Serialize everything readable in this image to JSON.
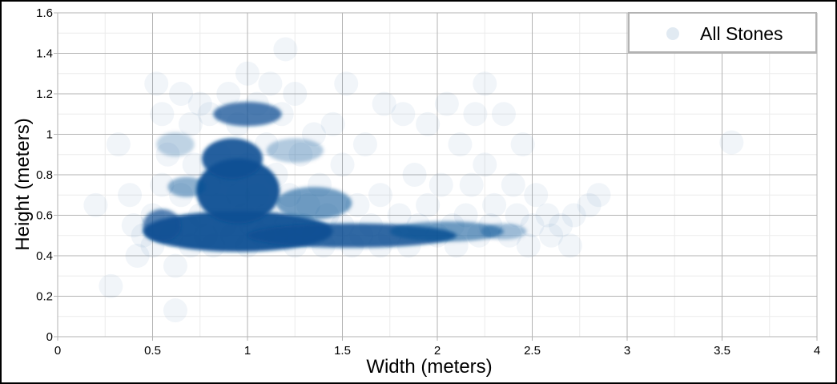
{
  "chart_data": {
    "type": "scatter",
    "title": "",
    "xlabel": "Width (meters)",
    "ylabel": "Height (meters)",
    "xlim": [
      0,
      4
    ],
    "ylim": [
      0,
      1.6
    ],
    "xticks": [
      0,
      0.5,
      1,
      1.5,
      2,
      2.5,
      3,
      3.5,
      4
    ],
    "xtick_labels": [
      "0",
      "0.5",
      "1",
      "1.5",
      "2",
      "2.5",
      "3",
      "3.5",
      "4"
    ],
    "yticks": [
      0,
      0.2,
      0.4,
      0.6,
      0.8,
      1,
      1.2,
      1.4,
      1.6
    ],
    "ytick_labels": [
      "0",
      "0.2",
      "0.4",
      "0.6",
      "0.8",
      "1",
      "1.2",
      "1.4",
      "1.6"
    ],
    "grid": true,
    "legend_position": "top-right",
    "series": [
      {
        "name": "All Stones",
        "color": "#0b4f94",
        "marker_opacity": 0.06,
        "points": [
          [
            0.2,
            0.65
          ],
          [
            0.28,
            0.25
          ],
          [
            0.32,
            0.95
          ],
          [
            0.38,
            0.7
          ],
          [
            0.4,
            0.55
          ],
          [
            0.42,
            0.4
          ],
          [
            0.45,
            0.5
          ],
          [
            0.5,
            0.45
          ],
          [
            0.5,
            0.6
          ],
          [
            0.52,
            1.25
          ],
          [
            0.55,
            1.1
          ],
          [
            0.55,
            0.75
          ],
          [
            0.58,
            0.9
          ],
          [
            0.6,
            0.5
          ],
          [
            0.62,
            0.13
          ],
          [
            0.62,
            0.35
          ],
          [
            0.65,
            1.2
          ],
          [
            0.65,
            0.7
          ],
          [
            0.68,
            0.55
          ],
          [
            0.7,
            0.45
          ],
          [
            0.7,
            1.05
          ],
          [
            0.72,
            0.85
          ],
          [
            0.75,
            0.6
          ],
          [
            0.75,
            1.15
          ],
          [
            0.78,
            0.5
          ],
          [
            0.8,
            0.75
          ],
          [
            0.8,
            1.1
          ],
          [
            0.82,
            0.45
          ],
          [
            0.85,
            0.65
          ],
          [
            0.85,
            0.9
          ],
          [
            0.88,
            0.55
          ],
          [
            0.9,
            1.2
          ],
          [
            0.9,
            0.8
          ],
          [
            0.92,
            0.5
          ],
          [
            0.95,
            0.7
          ],
          [
            0.95,
            1.05
          ],
          [
            0.98,
            0.6
          ],
          [
            1.0,
            0.45
          ],
          [
            1.0,
            1.3
          ],
          [
            1.0,
            0.85
          ],
          [
            1.02,
            0.55
          ],
          [
            1.05,
            1.15
          ],
          [
            1.05,
            0.7
          ],
          [
            1.08,
            0.5
          ],
          [
            1.1,
            0.95
          ],
          [
            1.1,
            0.6
          ],
          [
            1.12,
            1.25
          ],
          [
            1.15,
            0.5
          ],
          [
            1.15,
            0.8
          ],
          [
            1.18,
            1.1
          ],
          [
            1.2,
            1.42
          ],
          [
            1.2,
            0.55
          ],
          [
            1.22,
            0.7
          ],
          [
            1.25,
            0.45
          ],
          [
            1.25,
            1.2
          ],
          [
            1.28,
            0.9
          ],
          [
            1.3,
            0.55
          ],
          [
            1.32,
            0.65
          ],
          [
            1.35,
            0.5
          ],
          [
            1.35,
            1.0
          ],
          [
            1.38,
            0.75
          ],
          [
            1.4,
            0.45
          ],
          [
            1.42,
            0.6
          ],
          [
            1.45,
            1.05
          ],
          [
            1.45,
            0.5
          ],
          [
            1.5,
            0.55
          ],
          [
            1.5,
            0.85
          ],
          [
            1.52,
            1.25
          ],
          [
            1.55,
            0.45
          ],
          [
            1.58,
            0.65
          ],
          [
            1.6,
            0.5
          ],
          [
            1.62,
            0.95
          ],
          [
            1.65,
            0.55
          ],
          [
            1.7,
            0.7
          ],
          [
            1.7,
            0.45
          ],
          [
            1.72,
            1.15
          ],
          [
            1.75,
            0.5
          ],
          [
            1.8,
            0.6
          ],
          [
            1.82,
            1.1
          ],
          [
            1.85,
            0.45
          ],
          [
            1.88,
            0.8
          ],
          [
            1.9,
            0.55
          ],
          [
            1.95,
            0.65
          ],
          [
            1.95,
            1.05
          ],
          [
            2.0,
            0.5
          ],
          [
            2.02,
            0.75
          ],
          [
            2.05,
            1.15
          ],
          [
            2.08,
            0.55
          ],
          [
            2.1,
            0.45
          ],
          [
            2.12,
            0.95
          ],
          [
            2.15,
            0.6
          ],
          [
            2.18,
            0.75
          ],
          [
            2.2,
            1.1
          ],
          [
            2.22,
            0.5
          ],
          [
            2.25,
            0.85
          ],
          [
            2.25,
            1.25
          ],
          [
            2.28,
            0.55
          ],
          [
            2.3,
            0.65
          ],
          [
            2.35,
            1.1
          ],
          [
            2.38,
            0.5
          ],
          [
            2.4,
            0.75
          ],
          [
            2.42,
            0.6
          ],
          [
            2.45,
            0.95
          ],
          [
            2.48,
            0.45
          ],
          [
            2.5,
            0.55
          ],
          [
            2.52,
            0.7
          ],
          [
            2.58,
            0.6
          ],
          [
            2.6,
            0.5
          ],
          [
            2.65,
            0.55
          ],
          [
            2.7,
            0.45
          ],
          [
            2.72,
            0.6
          ],
          [
            2.8,
            0.65
          ],
          [
            2.85,
            0.7
          ],
          [
            3.55,
            0.96
          ]
        ]
      }
    ]
  }
}
